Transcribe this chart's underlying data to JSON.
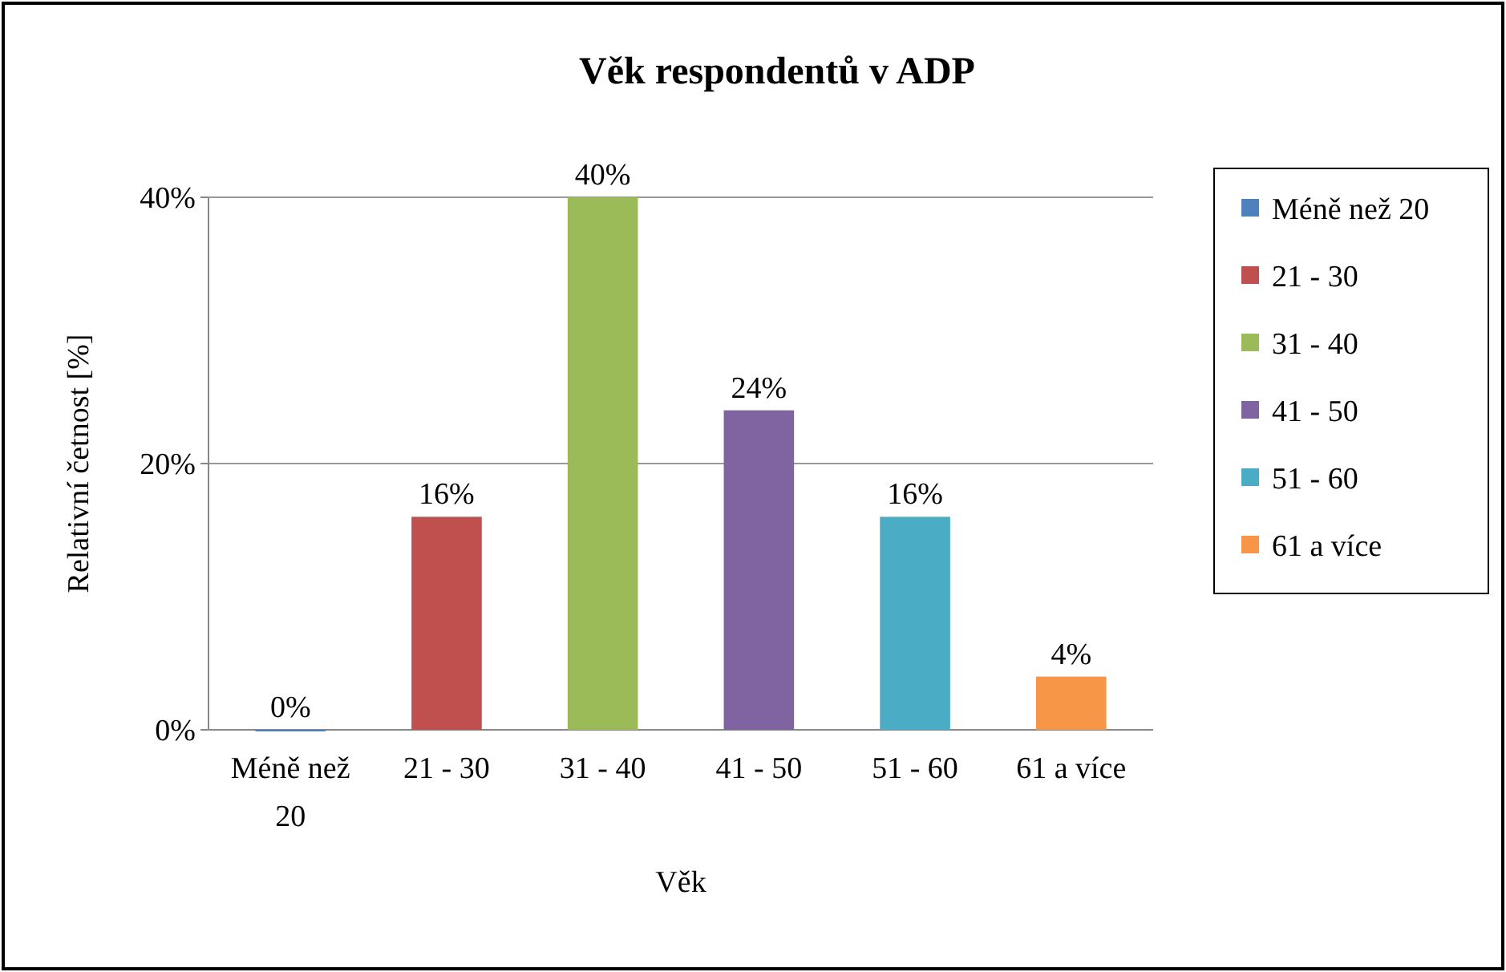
{
  "chart_data": {
    "type": "bar",
    "title": "Věk respondentů v ADP",
    "xlabel": "Věk",
    "ylabel": "Relativní četnost [%]",
    "categories": [
      "Méně než 20",
      "21 - 30",
      "31 - 40",
      "41 - 50",
      "51 - 60",
      "61 a více"
    ],
    "series": [
      {
        "name": "Méně než 20",
        "color": "#4f81bd",
        "values": [
          0,
          null,
          null,
          null,
          null,
          null
        ],
        "value_labels": [
          "0%",
          null,
          null,
          null,
          null,
          null
        ]
      },
      {
        "name": "21 - 30",
        "color": "#c0504d",
        "values": [
          null,
          16,
          null,
          null,
          null,
          null
        ],
        "value_labels": [
          null,
          "16%",
          null,
          null,
          null,
          null
        ]
      },
      {
        "name": "31 - 40",
        "color": "#9bbb59",
        "values": [
          null,
          null,
          40,
          null,
          null,
          null
        ],
        "value_labels": [
          null,
          null,
          "40%",
          null,
          null,
          null
        ]
      },
      {
        "name": "41 - 50",
        "color": "#8064a2",
        "values": [
          null,
          null,
          null,
          24,
          null,
          null
        ],
        "value_labels": [
          null,
          null,
          null,
          "24%",
          null,
          null
        ]
      },
      {
        "name": "51 - 60",
        "color": "#4bacc6",
        "values": [
          null,
          null,
          null,
          null,
          16,
          null
        ],
        "value_labels": [
          null,
          null,
          null,
          null,
          "16%",
          null
        ]
      },
      {
        "name": "61 a více",
        "color": "#f79646",
        "values": [
          null,
          null,
          null,
          null,
          null,
          4
        ],
        "value_labels": [
          null,
          null,
          null,
          null,
          null,
          "4%"
        ]
      }
    ],
    "ylim": [
      0,
      40
    ],
    "yticks": [
      {
        "value": 0,
        "label": "0%"
      },
      {
        "value": 20,
        "label": "20%"
      },
      {
        "value": 40,
        "label": "40%"
      }
    ],
    "grid": "y",
    "legend": "right"
  }
}
